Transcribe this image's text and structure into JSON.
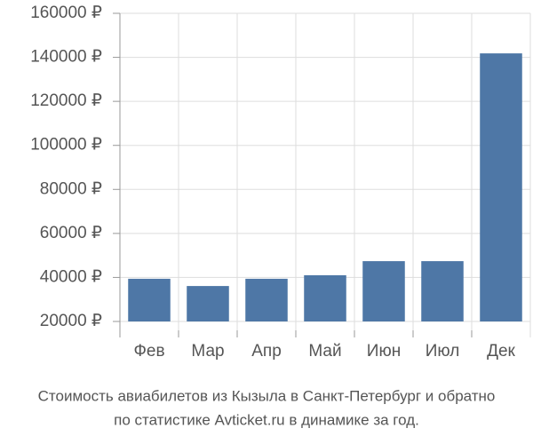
{
  "chart_data": {
    "type": "bar",
    "title": "Стоимость авиабилетов из Кызыла в Санкт-Петербург и обратно",
    "subtitle": "по статистике Avticket.ru в динамике за год.",
    "categories": [
      "Фев",
      "Мар",
      "Апр",
      "Май",
      "Июн",
      "Июл",
      "Дек"
    ],
    "values": [
      39400,
      36100,
      39400,
      41000,
      47400,
      47400,
      141800
    ],
    "color": "#4e77a6",
    "ylim": [
      20000,
      160000
    ],
    "yticks": [
      {
        "value": 20000,
        "label": "20000 ₽"
      },
      {
        "value": 40000,
        "label": "40000 ₽"
      },
      {
        "value": 60000,
        "label": "60000 ₽"
      },
      {
        "value": 80000,
        "label": "80000 ₽"
      },
      {
        "value": 100000,
        "label": "100000 ₽"
      },
      {
        "value": 120000,
        "label": "120000 ₽"
      },
      {
        "value": 140000,
        "label": "140000 ₽"
      },
      {
        "value": 160000,
        "label": "160000 ₽"
      }
    ],
    "grid": true
  }
}
